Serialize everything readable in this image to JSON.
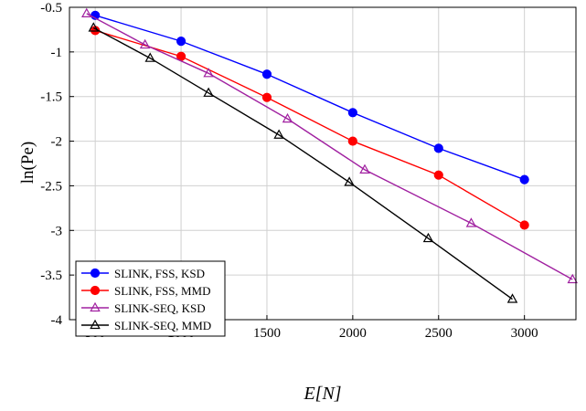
{
  "chart_data": {
    "type": "line",
    "title": "",
    "xlabel": "E[N]",
    "ylabel": "ln(Pe)",
    "xlim": [
      350,
      3300
    ],
    "ylim": [
      -4,
      -0.5
    ],
    "xticks": [
      500,
      1000,
      1500,
      2000,
      2500,
      3000
    ],
    "yticks": [
      -0.5,
      -1,
      -1.5,
      -2,
      -2.5,
      -3,
      -3.5,
      -4
    ],
    "grid": true,
    "legend_position": "bottom-left",
    "series": [
      {
        "name": "SLINK, FSS, KSD",
        "color": "#0000ff",
        "marker": "circle",
        "x": [
          500,
          1000,
          1500,
          2000,
          2500,
          3000
        ],
        "y": [
          -0.59,
          -0.88,
          -1.25,
          -1.68,
          -2.08,
          -2.43
        ]
      },
      {
        "name": "SLINK, FSS, MMD",
        "color": "#ff0000",
        "marker": "circle",
        "x": [
          500,
          1000,
          1500,
          2000,
          2500,
          3000
        ],
        "y": [
          -0.76,
          -1.05,
          -1.51,
          -2.0,
          -2.38,
          -2.94
        ]
      },
      {
        "name": "SLINK-SEQ, KSD",
        "color": "#a020a0",
        "marker": "triangle",
        "x": [
          450,
          790,
          1160,
          1620,
          2070,
          2690,
          3280
        ],
        "y": [
          -0.57,
          -0.92,
          -1.24,
          -1.75,
          -2.32,
          -2.92,
          -3.55
        ]
      },
      {
        "name": "SLINK-SEQ, MMD",
        "color": "#000000",
        "marker": "triangle",
        "x": [
          490,
          820,
          1160,
          1570,
          1980,
          2440,
          2930
        ],
        "y": [
          -0.73,
          -1.07,
          -1.46,
          -1.93,
          -2.46,
          -3.09,
          -3.77
        ]
      }
    ]
  }
}
